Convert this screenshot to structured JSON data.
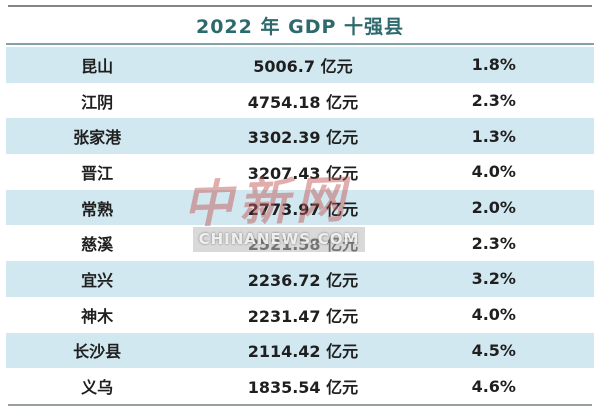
{
  "header": {
    "title": "2022 年 GDP 十强县"
  },
  "watermark": {
    "logo_text": "中新网",
    "site_text": "CHINANEWS.COM"
  },
  "colors": {
    "row_highlight": "#d1e8f0",
    "title_text": "#2e6a6d",
    "header_divider": "#7fa3a9",
    "top_border": "#858585",
    "bottom_border": "#9aa0a0",
    "body_text": "#1f1f1f",
    "watermark_red": "#c15656"
  },
  "chart_data": {
    "type": "table",
    "title": "2022 年 GDP 十强县",
    "rows": [
      [
        "昆山",
        "5006.7 亿元",
        "1.8%"
      ],
      [
        "江阴",
        "4754.18 亿元",
        "2.3%"
      ],
      [
        "张家港",
        "3302.39 亿元",
        "1.3%"
      ],
      [
        "晋江",
        "3207.43 亿元",
        "4.0%"
      ],
      [
        "常熟",
        "2773.97 亿元",
        "2.0%"
      ],
      [
        "慈溪",
        "2521.58 亿元",
        "2.3%"
      ],
      [
        "宜兴",
        "2236.72 亿元",
        "3.2%"
      ],
      [
        "神木",
        "2231.47 亿元",
        "4.0%"
      ],
      [
        "长沙县",
        "2114.42 亿元",
        "4.5%"
      ],
      [
        "义乌",
        "1835.54 亿元",
        "4.6%"
      ]
    ],
    "counties": [
      "昆山",
      "江阴",
      "张家港",
      "晋江",
      "常熟",
      "慈溪",
      "宜兴",
      "神木",
      "长沙县",
      "义乌"
    ],
    "gdp_yi_yuan": [
      5006.7,
      4754.18,
      3302.39,
      3207.43,
      2773.97,
      2521.58,
      2236.72,
      2231.47,
      2114.42,
      1835.54
    ],
    "growth_pct": [
      1.8,
      2.3,
      1.3,
      4.0,
      2.0,
      2.3,
      3.2,
      4.0,
      4.5,
      4.6
    ],
    "layout_hints": "no column headers visible; odd rows highlighted pale blue; all cells center-aligned"
  }
}
